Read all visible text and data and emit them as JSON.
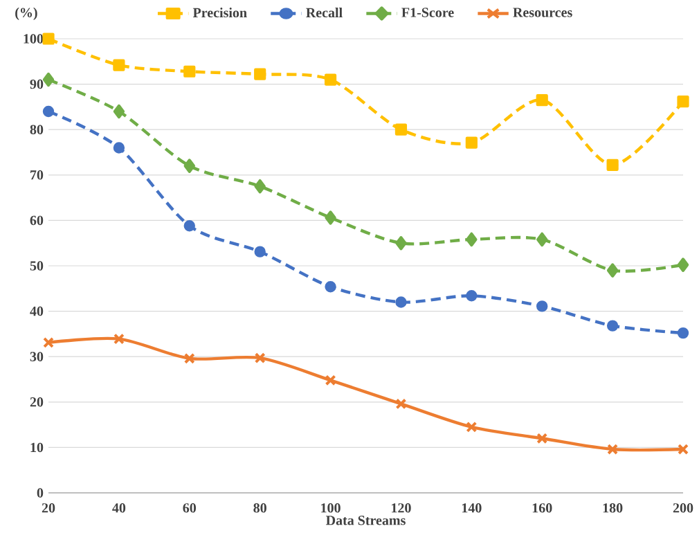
{
  "chart_data": {
    "type": "line",
    "xlabel": "Data Streams",
    "ylabel": "(%)",
    "x": [
      20,
      40,
      60,
      80,
      100,
      120,
      140,
      160,
      180,
      200
    ],
    "xlim": [
      20,
      200
    ],
    "xticks": [
      20,
      40,
      60,
      80,
      100,
      120,
      140,
      160,
      180,
      200
    ],
    "ylim": [
      0,
      100
    ],
    "yticks": [
      0,
      10,
      20,
      30,
      40,
      50,
      60,
      70,
      80,
      90,
      100
    ],
    "grid": "y",
    "legend": "top",
    "series": [
      {
        "name": "Precision",
        "color": "#ffc000",
        "marker": "square",
        "line_style": "dashed",
        "values": [
          100,
          94.2,
          92.8,
          92.2,
          91,
          80,
          77.1,
          86.5,
          72.2,
          86.2
        ]
      },
      {
        "name": "Recall",
        "color": "#4472c4",
        "marker": "circle",
        "line_style": "dashed",
        "values": [
          84,
          76,
          58.8,
          53.1,
          45.4,
          42,
          43.4,
          41.1,
          36.8,
          35.2
        ]
      },
      {
        "name": "F1-Score",
        "color": "#70ad47",
        "marker": "diamond",
        "line_style": "dashed",
        "values": [
          91,
          84,
          72,
          67.5,
          60.6,
          55,
          55.8,
          55.8,
          49,
          50.2
        ]
      },
      {
        "name": "Resources",
        "color": "#ed7d31",
        "marker": "cross",
        "line_style": "solid",
        "values": [
          33.1,
          33.9,
          29.6,
          29.7,
          24.8,
          19.6,
          14.5,
          12,
          9.6,
          9.6
        ]
      }
    ]
  }
}
